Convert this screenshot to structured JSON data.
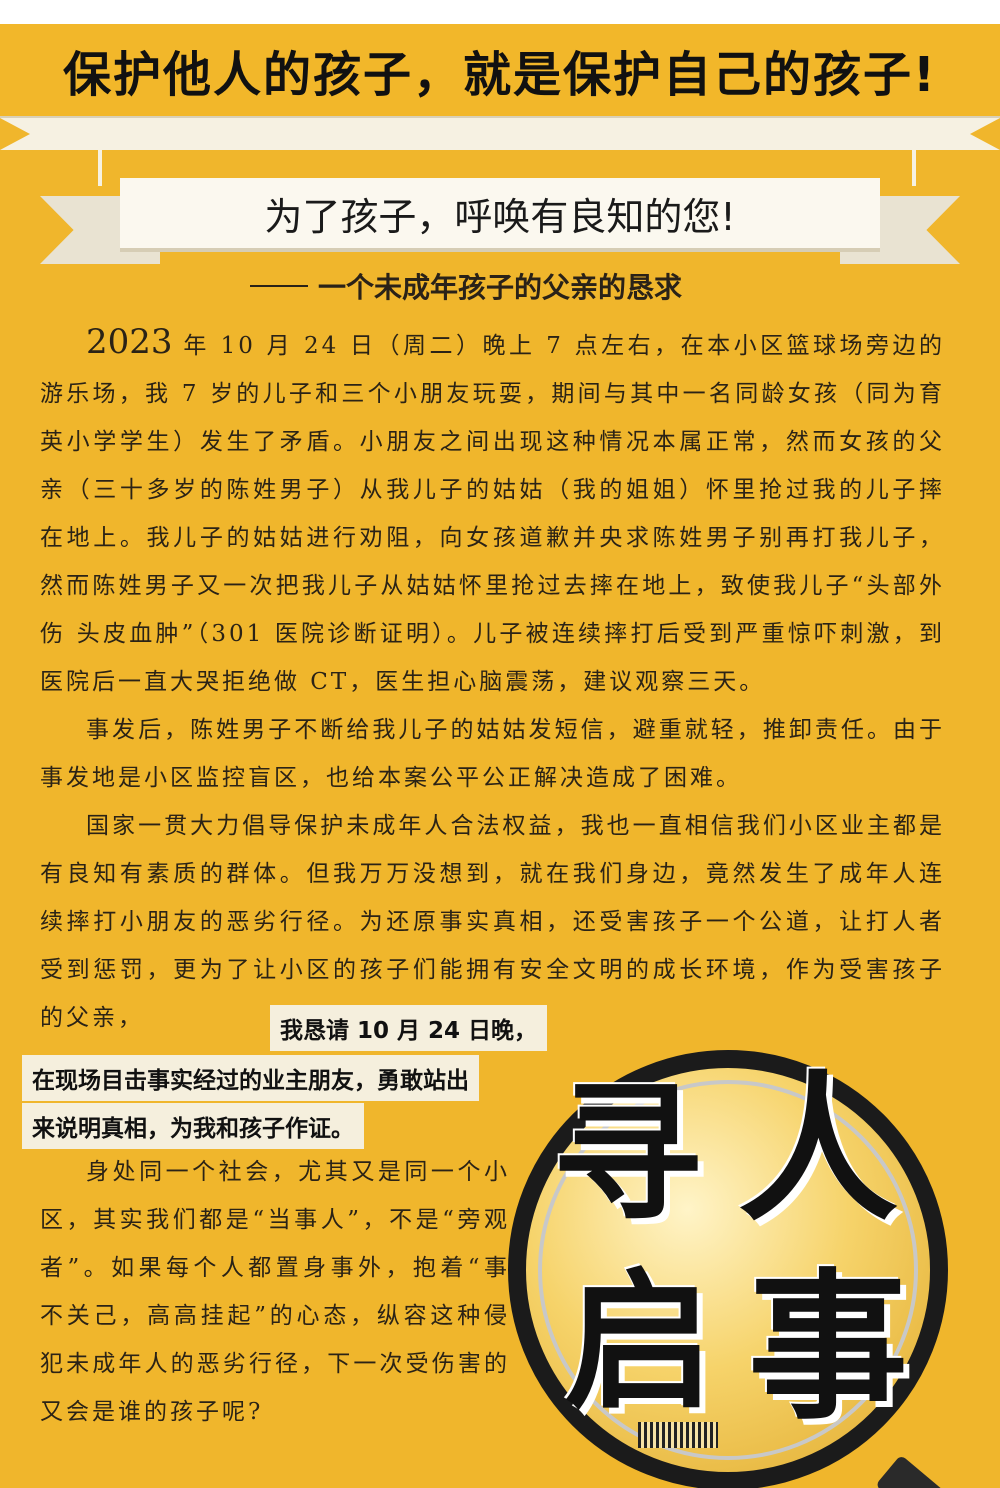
{
  "headline": "保护他人的孩子，就是保护自己的孩子!",
  "banner": "为了孩子，呼唤有良知的您!",
  "subtitle": "一个未成年孩子的父亲的恳求",
  "paragraphs": {
    "p1_date": "2023",
    "p1_rest": " 年 10 月 24 日（周二）晚上 7 点左右，在本小区篮球场旁边的游乐场，我 7 岁的儿子和三个小朋友玩耍，期间与其中一名同龄女孩（同为育英小学学生）发生了矛盾。小朋友之间出现这种情况本属正常，然而女孩的父亲（三十多岁的陈姓男子）从我儿子的姑姑（我的姐姐）怀里抢过我的儿子摔在地上。我儿子的姑姑进行劝阻，向女孩道歉并央求陈姓男子别再打我儿子，然而陈姓男子又一次把我儿子从姑姑怀里抢过去摔在地上，致使我儿子“头部外伤 头皮血肿”（301 医院诊断证明）。儿子被连续摔打后受到严重惊吓刺激，到医院后一直大哭拒绝做 CT，医生担心脑震荡，建议观察三天。",
    "p2": "事发后，陈姓男子不断给我儿子的姑姑发短信，避重就轻，推卸责任。由于事发地是小区监控盲区，也给本案公平公正解决造成了困难。",
    "p3": "国家一贯大力倡导保护未成年人合法权益，我也一直相信我们小区业主都是有良知有素质的群体。但我万万没想到，就在我们身边，竟然发生了成年人连续摔打小朋友的恶劣行径。为还原事实真相，还受害孩子一个公道，让打人者受到惩罚，更为了让小区的孩子们能拥有安全文明的成长环境，作为受害孩子的父亲，",
    "highlight_1": "我恳请 10 月 24 日晚，",
    "highlight_2": "在现场目击事实经过的业主朋友，勇敢站出",
    "highlight_3": "来说明真相，为我和孩子作证。",
    "p4": "身处同一个社会，尤其又是同一个小区，其实我们都是“当事人”，不是“旁观者”。如果每个人都置身事外，抱着“事不关己，高高挂起”的心态，纵容这种侵犯未成年人的恶劣行径，下一次受伤害的又会是谁的孩子呢?"
  },
  "graphic": {
    "chars": [
      "寻",
      "人",
      "启",
      "事"
    ]
  },
  "colors": {
    "background": "#f0b62c",
    "banner": "#fbf8ef",
    "text": "#2b2316"
  }
}
